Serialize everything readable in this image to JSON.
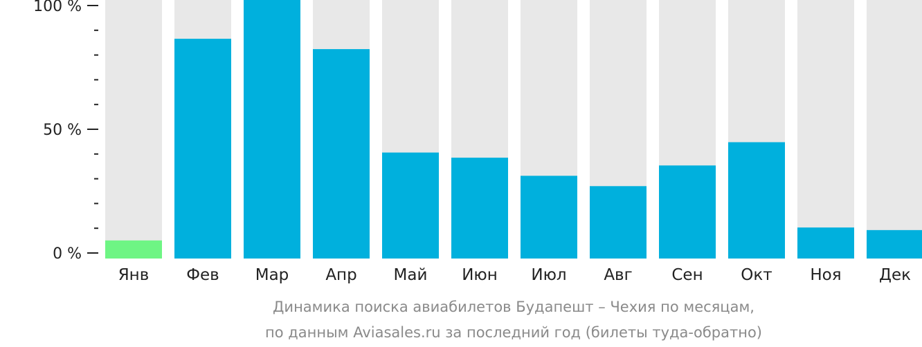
{
  "chart_data": {
    "type": "bar",
    "categories": [
      "Янв",
      "Фев",
      "Мар",
      "Апр",
      "Май",
      "Июн",
      "Июл",
      "Авг",
      "Сен",
      "Окт",
      "Ноя",
      "Дек"
    ],
    "values": [
      7,
      85,
      100,
      81,
      41,
      39,
      32,
      28,
      36,
      45,
      12,
      11
    ],
    "highlight_index": 0,
    "ylim": [
      0,
      100
    ],
    "y_ticks": [
      {
        "value": 0,
        "label": "0 %"
      },
      {
        "value": 50,
        "label": "50 %"
      },
      {
        "value": 100,
        "label": "100 %"
      }
    ],
    "y_minor_step": 10,
    "grid": false,
    "legend": "none",
    "colors": {
      "bar": "#00b0dd",
      "highlight": "#6ef584",
      "track": "#e8e8e8",
      "axis": "#222222",
      "caption": "#8a8a8a"
    },
    "caption_lines": [
      "Динамика поиска авиабилетов Будапешт – Чехия по месяцам,",
      "по данным Aviasales.ru за последний год (билеты туда-обратно)"
    ]
  }
}
